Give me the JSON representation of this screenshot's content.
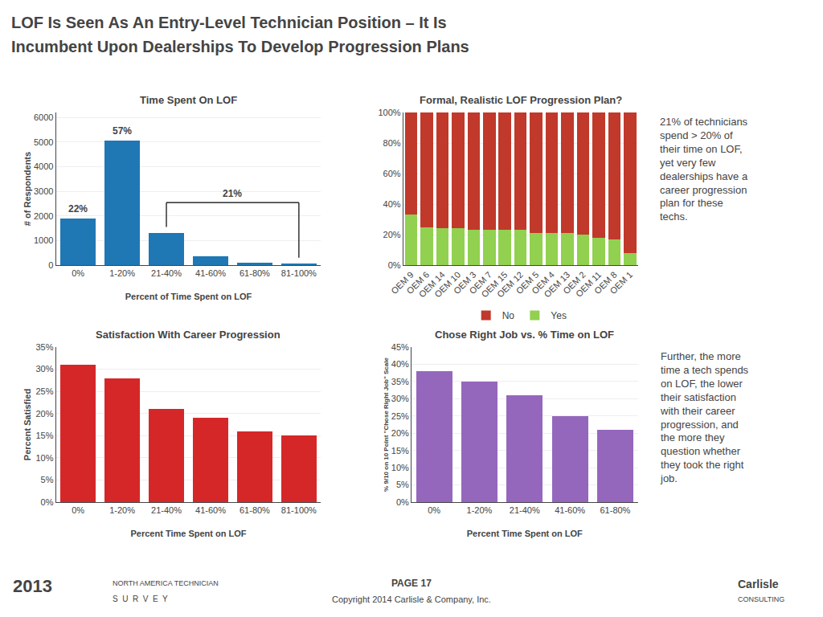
{
  "title": "LOF Is Seen As An Entry-Level Technician Position – It Is\nIncumbent Upon Dealerships To Develop Progression Plans",
  "annotations": [
    "2013",
    "NORTH AMERICA TECHNICIAN",
    "S  U  R  V  E  Y",
    "PAGE 17",
    "Copyright 2014 Carlisle & Company, Inc.",
    "Carlisle",
    "CONSULTING",
    "21% of technicians\nspend > 20% of\ntheir time on LOF,\nyet very few\ndealerships have a\ncareer progression\nplan for these\ntechs.",
    "Further, the more\ntime a tech spends\non LOF, the lower\ntheir satisfaction\nwith their career\nprogression, and\nthe more they\nquestion whether\nthey took the right\njob."
  ],
  "chart_data": [
    {
      "type": "bar",
      "title": "Time Spent On LOF",
      "categories": [
        "0%",
        "1-20%",
        "21-40%",
        "41-60%",
        "61-80%",
        "81-100%"
      ],
      "values": [
        1900,
        5050,
        1300,
        350,
        100,
        50
      ],
      "xlabel": "Percent of Time Spent on LOF",
      "ylabel": "# of Respondents",
      "ylim": [
        0,
        6200
      ],
      "yticks": [
        0,
        1000,
        2000,
        3000,
        4000,
        5000,
        6000
      ],
      "grid": true,
      "annotations": [
        {
          "text": "22%",
          "x": "0%"
        },
        {
          "text": "57%",
          "x": "1-20%"
        },
        {
          "text": "21%",
          "x": [
            "21-40%",
            "81-100%"
          ]
        }
      ]
    },
    {
      "type": "bar",
      "title": "Formal, Realistic LOF Progression Plan?",
      "categories": [
        "OEM 9",
        "OEM 6",
        "OEM 14",
        "OEM 10",
        "OEM 3",
        "OEM 7",
        "OEM 15",
        "OEM 12",
        "OEM 5",
        "OEM 4",
        "OEM 13",
        "OEM 2",
        "OEM 11",
        "OEM 8",
        "OEM 1"
      ],
      "series": [
        {
          "name": "Yes",
          "color": "#92d050",
          "values": [
            33,
            25,
            24,
            24,
            23,
            23,
            23,
            23,
            21,
            21,
            21,
            20,
            18,
            17,
            8
          ]
        },
        {
          "name": "No",
          "color": "#c0392b",
          "values": [
            67,
            75,
            76,
            76,
            77,
            77,
            77,
            77,
            79,
            79,
            79,
            80,
            82,
            83,
            92
          ]
        }
      ],
      "stacked": true,
      "legend": "bottom",
      "ylim": [
        0,
        100
      ],
      "yticks": [
        {
          "value": 0,
          "label": "0%"
        },
        {
          "value": 20,
          "label": "20%"
        },
        {
          "value": 40,
          "label": "40%"
        },
        {
          "value": 60,
          "label": "60%"
        },
        {
          "value": 80,
          "label": "80%"
        },
        {
          "value": 100,
          "label": "100%"
        }
      ],
      "grid": true
    },
    {
      "type": "bar",
      "title": "Satisfaction With Career Progression",
      "categories": [
        "0%",
        "1-20%",
        "21-40%",
        "41-60%",
        "61-80%",
        "81-100%"
      ],
      "values": [
        31,
        28,
        21,
        19,
        16,
        15
      ],
      "xlabel": "Percent Time Spent on LOF",
      "ylabel": "Percent Satisfied",
      "ylim": [
        0,
        35
      ],
      "yticks": [
        {
          "value": 0,
          "label": "0%"
        },
        {
          "value": 5,
          "label": "5%"
        },
        {
          "value": 10,
          "label": "10%"
        },
        {
          "value": 15,
          "label": "15%"
        },
        {
          "value": 20,
          "label": "20%"
        },
        {
          "value": 25,
          "label": "25%"
        },
        {
          "value": 30,
          "label": "30%"
        },
        {
          "value": 35,
          "label": "35%"
        }
      ],
      "grid": true
    },
    {
      "type": "bar",
      "title": "Chose Right Job vs. % Time on LOF",
      "categories": [
        "0%",
        "1-20%",
        "21-40%",
        "41-60%",
        "61-80%"
      ],
      "values": [
        38,
        35,
        31,
        25,
        21
      ],
      "xlabel": "Percent Time Spent on LOF",
      "ylabel": "% 9/10 on 10 Point \"Chose Right Job\" Scale",
      "ylim": [
        0,
        45
      ],
      "yticks": [
        {
          "value": 0,
          "label": "0%"
        },
        {
          "value": 5,
          "label": "5%"
        },
        {
          "value": 10,
          "label": "10%"
        },
        {
          "value": 15,
          "label": "15%"
        },
        {
          "value": 20,
          "label": "20%"
        },
        {
          "value": 25,
          "label": "25%"
        },
        {
          "value": 30,
          "label": "30%"
        },
        {
          "value": 35,
          "label": "35%"
        },
        {
          "value": 40,
          "label": "40%"
        },
        {
          "value": 45,
          "label": "45%"
        }
      ],
      "grid": true
    }
  ]
}
